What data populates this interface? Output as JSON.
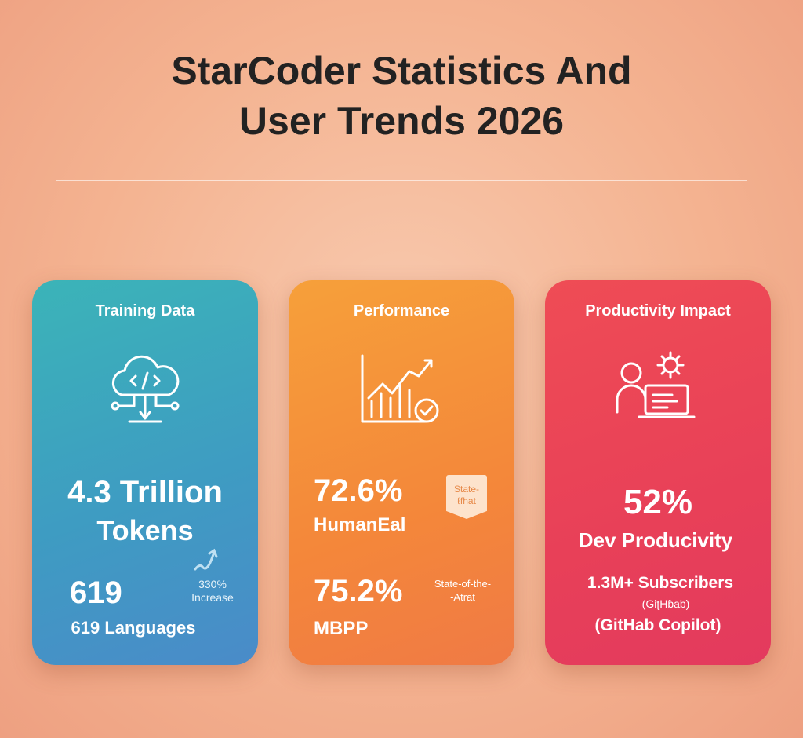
{
  "title": {
    "line1": "StarCoder Statistics And",
    "line2": "User Trends 2026"
  },
  "cards": [
    {
      "heading": "Training Data",
      "icon": "cloud-code-icon",
      "color": "#3ea6c0",
      "main_line1": "4.3 Trillion",
      "main_line2": "Tokens",
      "big_number": "619",
      "sub_label": "619 Languages",
      "trend_icon": "trend-up-arrow-icon",
      "trend_value": "330%",
      "trend_label": "Increase"
    },
    {
      "heading": "Performance",
      "icon": "chart-check-icon",
      "color": "#f48a3a",
      "stat1_value": "72.6%",
      "stat1_label": "HumanEal",
      "badge_line1": "State-",
      "badge_line2": "ℓfhat",
      "stat2_value": "75.2%",
      "stat2_label": "MBPP",
      "note_line1": "State-of-the-",
      "note_line2": "-Atrat"
    },
    {
      "heading": "Productivity Impact",
      "icon": "developer-laptop-gear-icon",
      "color": "#e84458",
      "main_value": "52%",
      "main_label": "Dev Producivity",
      "subscribers": "1.3M+ Subscribers",
      "sub_note": "(GiʈHɓab)",
      "sub_source": "(GitHab Copilot)"
    }
  ]
}
